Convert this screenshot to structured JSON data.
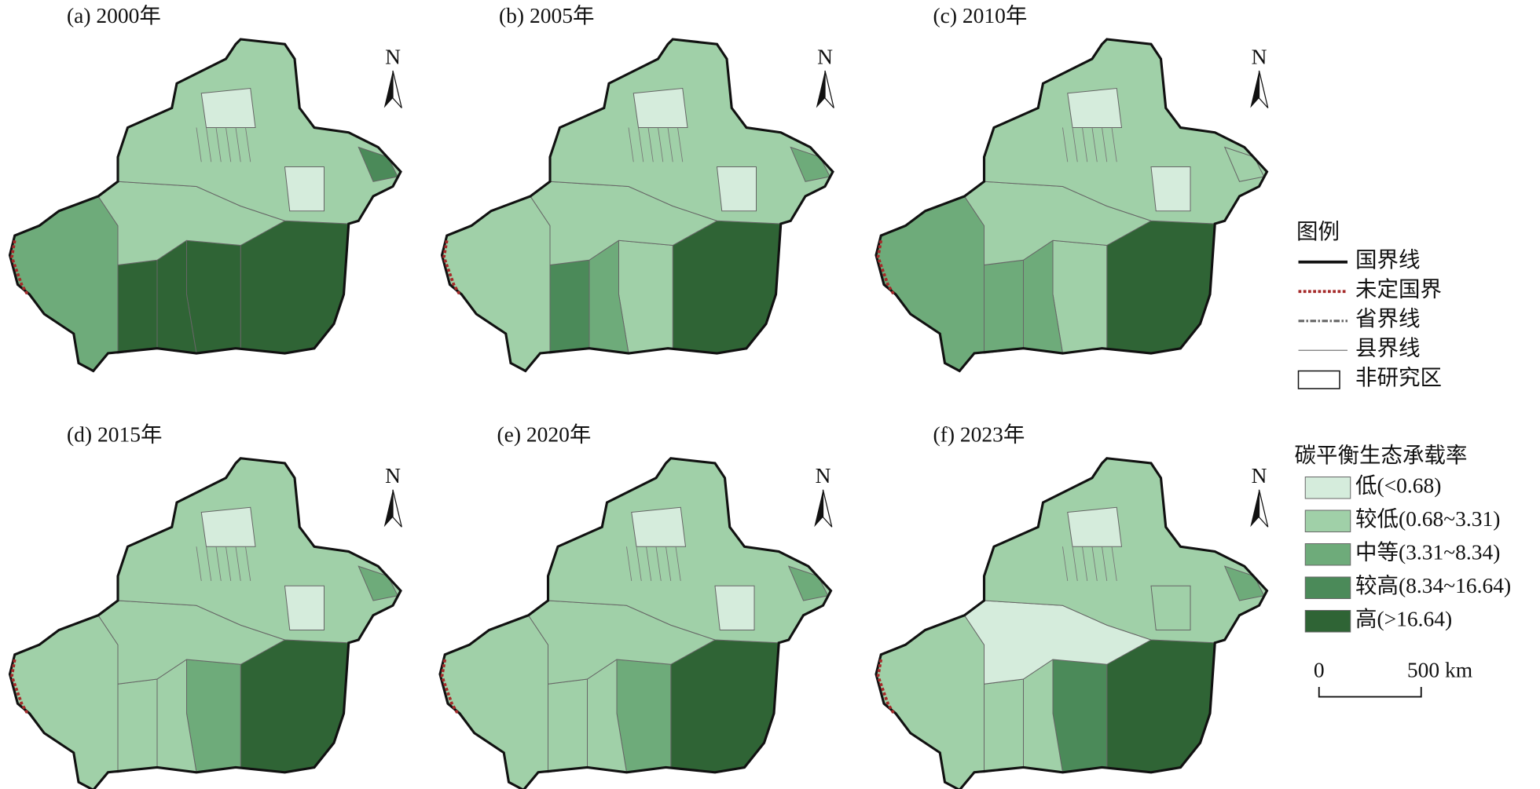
{
  "panels": [
    {
      "title": "(a) 2000年",
      "region_classes": [
        4,
        4,
        4,
        4,
        2,
        1,
        1,
        0,
        0,
        3
      ]
    },
    {
      "title": "(b) 2005年",
      "region_classes": [
        4,
        1,
        2,
        3,
        1,
        1,
        1,
        0,
        0,
        2
      ]
    },
    {
      "title": "(c) 2010年",
      "region_classes": [
        4,
        1,
        2,
        2,
        2,
        1,
        1,
        0,
        0,
        1
      ]
    },
    {
      "title": "(d) 2015年",
      "region_classes": [
        4,
        2,
        1,
        1,
        1,
        1,
        1,
        0,
        0,
        2
      ]
    },
    {
      "title": "(e) 2020年",
      "region_classes": [
        4,
        2,
        1,
        1,
        1,
        1,
        1,
        0,
        0,
        2
      ]
    },
    {
      "title": "(f) 2023年",
      "region_classes": [
        4,
        3,
        1,
        1,
        1,
        0,
        1,
        0,
        1,
        2
      ]
    }
  ],
  "north_label": "N",
  "legend": {
    "title": "图例",
    "items": [
      "国界线",
      "未定国界",
      "省界线",
      "县界线",
      "非研究区"
    ],
    "class_title": "碳平衡生态承载率",
    "classes": [
      {
        "label": "低(<0.68)",
        "color": "#d5ecdc"
      },
      {
        "label": "较低(0.68~3.31)",
        "color": "#a0d0a8"
      },
      {
        "label": "中等(3.31~8.34)",
        "color": "#6eab7a"
      },
      {
        "label": "较高(8.34~16.64)",
        "color": "#4b8a59"
      },
      {
        "label": "高(>16.64)",
        "color": "#2f6435"
      }
    ]
  },
  "scale": {
    "labels": [
      "0",
      "500 km"
    ]
  }
}
